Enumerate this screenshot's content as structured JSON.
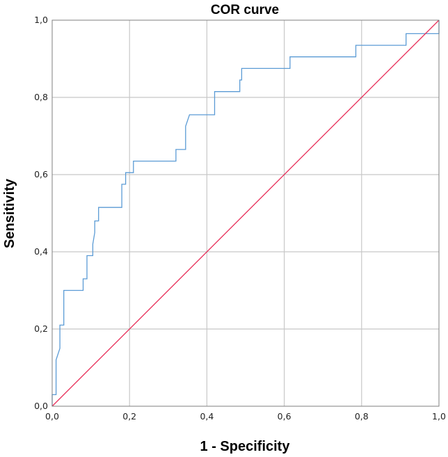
{
  "chart_data": {
    "type": "line",
    "title": "COR curve",
    "xlabel": "1 - Specificity",
    "ylabel": "Sensitivity",
    "xlim": [
      0,
      1
    ],
    "ylim": [
      0,
      1
    ],
    "xticks": [
      "0,0",
      "0,2",
      "0,4",
      "0,6",
      "0,8",
      "1,0"
    ],
    "yticks": [
      "0,0",
      "0,2",
      "0,4",
      "0,6",
      "0,8",
      "1,0"
    ],
    "grid": true,
    "legend": "none",
    "series": [
      {
        "color": "#5b9bd5",
        "points": [
          [
            0,
            0
          ],
          [
            0,
            0.03
          ],
          [
            0.01,
            0.03
          ],
          [
            0.01,
            0.12
          ],
          [
            0.02,
            0.15
          ],
          [
            0.02,
            0.21
          ],
          [
            0.03,
            0.21
          ],
          [
            0.03,
            0.3
          ],
          [
            0.08,
            0.3
          ],
          [
            0.08,
            0.33
          ],
          [
            0.09,
            0.33
          ],
          [
            0.09,
            0.39
          ],
          [
            0.105,
            0.39
          ],
          [
            0.105,
            0.42
          ],
          [
            0.11,
            0.45
          ],
          [
            0.11,
            0.48
          ],
          [
            0.12,
            0.48
          ],
          [
            0.12,
            0.515
          ],
          [
            0.18,
            0.515
          ],
          [
            0.18,
            0.575
          ],
          [
            0.19,
            0.575
          ],
          [
            0.19,
            0.605
          ],
          [
            0.21,
            0.605
          ],
          [
            0.21,
            0.635
          ],
          [
            0.32,
            0.635
          ],
          [
            0.32,
            0.665
          ],
          [
            0.345,
            0.665
          ],
          [
            0.345,
            0.725
          ],
          [
            0.355,
            0.755
          ],
          [
            0.42,
            0.755
          ],
          [
            0.42,
            0.815
          ],
          [
            0.485,
            0.815
          ],
          [
            0.485,
            0.845
          ],
          [
            0.49,
            0.845
          ],
          [
            0.49,
            0.875
          ],
          [
            0.615,
            0.875
          ],
          [
            0.615,
            0.905
          ],
          [
            0.785,
            0.905
          ],
          [
            0.785,
            0.935
          ],
          [
            0.915,
            0.935
          ],
          [
            0.915,
            0.965
          ],
          [
            1.0,
            0.965
          ],
          [
            1.0,
            1.0
          ]
        ]
      },
      {
        "color": "#e8305a",
        "points": [
          [
            0,
            0
          ],
          [
            1,
            1
          ]
        ]
      }
    ]
  }
}
